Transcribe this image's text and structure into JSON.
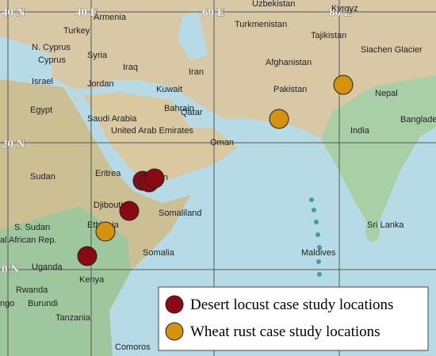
{
  "grid_labels": [
    "40 N",
    "40 E",
    "60 E",
    "80 E",
    "20 N",
    "0 N"
  ],
  "place_labels": [
    "Armenia",
    "Uzbekistan",
    "Turkey",
    "Turkmenistan",
    "Tajikistan",
    "Kyrgyz",
    "N. Cyprus",
    "Cyprus",
    "Syria",
    "Siachen Glacier",
    "Iraq",
    "Iran",
    "Afghanistan",
    "Israel",
    "Jordan",
    "Kuwait",
    "Pakistan",
    "Egypt",
    "Bahrain",
    "Nepal",
    "Saudi Arabia",
    "Qatar",
    "United Arab Emirates",
    "India",
    "Banglade",
    "Oman",
    "Sudan",
    "Eritrea",
    "Yemen",
    "Djibouti",
    "Somaliland",
    "S. Sudan",
    "Ethiopia",
    "Sri Lanka",
    "al African Rep.",
    "Somalia",
    "Maldives",
    "Uganda",
    "Kenya",
    "Rwanda",
    "ngo",
    "Burundi",
    "Tanzania",
    "Comoros"
  ],
  "legend": {
    "items": [
      "Desert locust case study locations",
      "Wheat rust case study locations"
    ]
  }
}
